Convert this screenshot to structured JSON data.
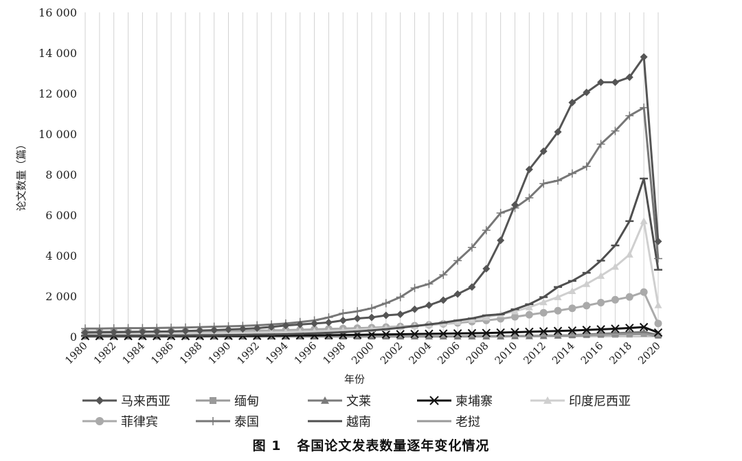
{
  "figure": {
    "caption_number": "图 1",
    "caption_text": "各国论文发表数量逐年变化情况"
  },
  "chart_data": {
    "type": "line",
    "xlabel": "年份",
    "ylabel": "论文数量（篇）",
    "ylim": [
      0,
      16000
    ],
    "yticks": [
      0,
      2000,
      4000,
      6000,
      8000,
      10000,
      12000,
      14000,
      16000
    ],
    "ytick_labels": [
      "0",
      "2 000",
      "4 000",
      "6 000",
      "8 000",
      "10 000",
      "12 000",
      "14 000",
      "16 000"
    ],
    "xlim": [
      1980,
      2020
    ],
    "xtick_labels": [
      "1980",
      "1982",
      "1984",
      "1986",
      "1988",
      "1990",
      "1992",
      "1994",
      "1996",
      "1998",
      "2000",
      "2002",
      "2004",
      "2006",
      "2008",
      "2010",
      "2012",
      "2014",
      "2016",
      "2018",
      "2020"
    ],
    "grid": "vertical",
    "legend_position": "bottom",
    "x": [
      1980,
      1981,
      1982,
      1983,
      1984,
      1985,
      1986,
      1987,
      1988,
      1989,
      1990,
      1991,
      1992,
      1993,
      1994,
      1995,
      1996,
      1997,
      1998,
      1999,
      2000,
      2001,
      2002,
      2003,
      2004,
      2005,
      2006,
      2007,
      2008,
      2009,
      2010,
      2011,
      2012,
      2013,
      2014,
      2015,
      2016,
      2017,
      2018,
      2019,
      2020
    ],
    "series": [
      {
        "name": "马来西亚",
        "color": "#555555",
        "marker": "diamond",
        "values": [
          200,
          210,
          220,
          230,
          240,
          250,
          260,
          280,
          300,
          320,
          350,
          380,
          420,
          480,
          550,
          600,
          650,
          700,
          800,
          900,
          950,
          1050,
          1100,
          1350,
          1550,
          1800,
          2100,
          2450,
          3350,
          4750,
          6500,
          8250,
          9150,
          10100,
          11550,
          12050,
          12550,
          12550,
          12800,
          13800,
          4700
        ]
      },
      {
        "name": "缅甸",
        "color": "#9a9a9a",
        "marker": "square",
        "values": [
          20,
          20,
          20,
          20,
          20,
          20,
          20,
          20,
          20,
          20,
          20,
          20,
          20,
          20,
          20,
          20,
          20,
          20,
          20,
          20,
          20,
          20,
          20,
          20,
          20,
          20,
          20,
          30,
          30,
          30,
          40,
          40,
          50,
          60,
          70,
          80,
          90,
          100,
          110,
          130,
          50
        ]
      },
      {
        "name": "文莱",
        "color": "#7a7a7a",
        "marker": "triangle",
        "values": [
          10,
          10,
          10,
          10,
          10,
          10,
          10,
          10,
          10,
          10,
          10,
          10,
          10,
          10,
          10,
          10,
          10,
          10,
          10,
          10,
          10,
          10,
          10,
          10,
          10,
          10,
          10,
          10,
          10,
          10,
          20,
          20,
          30,
          50,
          80,
          110,
          140,
          170,
          200,
          230,
          80
        ]
      },
      {
        "name": "柬埔寨",
        "color": "#111111",
        "marker": "x",
        "values": [
          30,
          30,
          30,
          30,
          30,
          30,
          30,
          30,
          30,
          40,
          40,
          40,
          40,
          50,
          50,
          60,
          60,
          70,
          80,
          90,
          100,
          110,
          120,
          130,
          140,
          150,
          160,
          170,
          180,
          200,
          220,
          240,
          260,
          280,
          300,
          330,
          360,
          390,
          430,
          470,
          200
        ]
      },
      {
        "name": "印度尼西亚",
        "color": "#cfcfcf",
        "marker": "triangle",
        "values": [
          150,
          150,
          150,
          150,
          150,
          150,
          150,
          160,
          160,
          170,
          180,
          190,
          200,
          210,
          220,
          240,
          260,
          280,
          310,
          340,
          380,
          420,
          470,
          520,
          580,
          650,
          730,
          830,
          950,
          1100,
          1250,
          1450,
          1700,
          1950,
          2250,
          2600,
          3000,
          3450,
          4050,
          5700,
          1550
        ]
      },
      {
        "name": "菲律宾",
        "color": "#aaaaaa",
        "marker": "circle",
        "values": [
          250,
          250,
          250,
          250,
          250,
          250,
          250,
          260,
          260,
          270,
          280,
          290,
          300,
          310,
          320,
          340,
          360,
          380,
          400,
          420,
          440,
          470,
          500,
          540,
          580,
          630,
          680,
          740,
          800,
          880,
          980,
          1080,
          1180,
          1280,
          1400,
          1530,
          1680,
          1820,
          1960,
          2200,
          650
        ]
      },
      {
        "name": "泰国",
        "color": "#777777",
        "marker": "plus",
        "values": [
          400,
          400,
          410,
          420,
          420,
          430,
          440,
          450,
          470,
          490,
          510,
          530,
          560,
          600,
          650,
          720,
          800,
          950,
          1150,
          1250,
          1400,
          1650,
          1950,
          2400,
          2600,
          3050,
          3750,
          4400,
          5250,
          6100,
          6350,
          6850,
          7550,
          7700,
          8050,
          8400,
          9500,
          10150,
          10900,
          11300,
          3850
        ]
      },
      {
        "name": "越南",
        "color": "#4f4f4f",
        "marker": "dash",
        "values": [
          50,
          50,
          50,
          50,
          50,
          60,
          60,
          60,
          70,
          70,
          80,
          90,
          100,
          110,
          120,
          140,
          160,
          190,
          220,
          260,
          310,
          370,
          440,
          520,
          600,
          690,
          800,
          900,
          1050,
          1100,
          1350,
          1600,
          1950,
          2450,
          2750,
          3150,
          3750,
          4500,
          5700,
          7800,
          3300
        ]
      },
      {
        "name": "老挝",
        "color": "#999999",
        "marker": "dash",
        "values": [
          10,
          10,
          10,
          10,
          10,
          10,
          10,
          10,
          10,
          10,
          10,
          10,
          10,
          10,
          10,
          10,
          10,
          10,
          10,
          10,
          10,
          10,
          10,
          10,
          10,
          10,
          20,
          20,
          20,
          30,
          30,
          40,
          50,
          60,
          70,
          80,
          90,
          100,
          110,
          120,
          40
        ]
      }
    ]
  }
}
